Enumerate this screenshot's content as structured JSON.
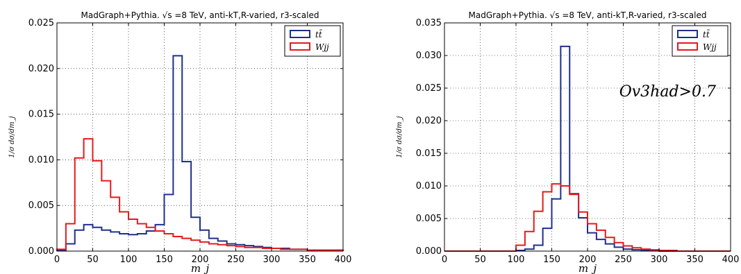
{
  "chart_data": [
    {
      "type": "histogram",
      "title": "MadGraph+Pythia. √s =8 TeV, anti-kT,R-varied, r3-scaled",
      "xlabel": "m_j",
      "ylabel": "1/σ dσ/dm_j",
      "xlim": [
        0,
        400
      ],
      "ylim": [
        0,
        0.025
      ],
      "x_ticks": [
        "0",
        "50",
        "100",
        "150",
        "200",
        "250",
        "300",
        "350",
        "400"
      ],
      "y_ticks": [
        "0.000",
        "0.005",
        "0.010",
        "0.015",
        "0.020",
        "0.025"
      ],
      "grid": true,
      "legend": "top-right",
      "bin_edges": [
        0,
        12.5,
        25,
        37.5,
        50,
        62.5,
        75,
        87.5,
        100,
        112.5,
        125,
        137.5,
        150,
        162.5,
        175,
        187.5,
        200,
        212.5,
        225,
        237.5,
        250,
        262.5,
        275,
        287.5,
        300,
        312.5,
        325,
        337.5,
        350,
        362.5,
        375,
        387.5,
        400
      ],
      "series": [
        {
          "name": "tt̄",
          "color": "#1f2f8c",
          "values": [
            0.0001,
            0.0008,
            0.0023,
            0.0029,
            0.0026,
            0.0023,
            0.0021,
            0.0019,
            0.0018,
            0.0019,
            0.0022,
            0.0029,
            0.0062,
            0.0214,
            0.0098,
            0.0037,
            0.0023,
            0.0014,
            0.0011,
            0.0008,
            0.0007,
            0.0006,
            0.0005,
            0.0004,
            0.0003,
            0.0003,
            0.0002,
            0.0002,
            0.0001,
            0.0001,
            0.0001,
            0.0001
          ]
        },
        {
          "name": "Wjj",
          "color": "#e41a1c",
          "values": [
            0.0002,
            0.003,
            0.0102,
            0.0123,
            0.0099,
            0.0077,
            0.0059,
            0.0043,
            0.0035,
            0.003,
            0.0026,
            0.0022,
            0.0019,
            0.0016,
            0.0014,
            0.0012,
            0.001,
            0.0008,
            0.0007,
            0.0006,
            0.0005,
            0.0004,
            0.0004,
            0.0003,
            0.0003,
            0.0002,
            0.0002,
            0.0002,
            0.0001,
            0.0001,
            0.0001,
            0.0001
          ]
        }
      ]
    },
    {
      "type": "histogram",
      "title": "MadGraph+Pythia. √s =8 TeV, anti-kT,R-varied, r3-scaled",
      "xlabel": "m_j",
      "ylabel": "1/σ dσ/dm_j",
      "xlim": [
        0,
        400
      ],
      "ylim": [
        0,
        0.035
      ],
      "x_ticks": [
        "0",
        "50",
        "100",
        "150",
        "200",
        "250",
        "300",
        "350",
        "400"
      ],
      "y_ticks": [
        "0.000",
        "0.005",
        "0.010",
        "0.015",
        "0.020",
        "0.025",
        "0.030",
        "0.035"
      ],
      "grid": true,
      "legend": "top-right",
      "annotation": "Ov3had>0.7",
      "bin_edges": [
        0,
        12.5,
        25,
        37.5,
        50,
        62.5,
        75,
        87.5,
        100,
        112.5,
        125,
        137.5,
        150,
        162.5,
        175,
        187.5,
        200,
        212.5,
        225,
        237.5,
        250,
        262.5,
        275,
        287.5,
        300,
        312.5,
        325,
        337.5,
        350,
        362.5,
        375,
        387.5,
        400
      ],
      "series": [
        {
          "name": "tt̄",
          "color": "#1f2f8c",
          "values": [
            0,
            0,
            0,
            0,
            0,
            0,
            0,
            0,
            0.0001,
            0.0003,
            0.0009,
            0.0035,
            0.008,
            0.0314,
            0.0088,
            0.0051,
            0.0028,
            0.0018,
            0.0011,
            0.0006,
            0.0003,
            0.0002,
            0.0001,
            0.0001,
            0,
            0,
            0,
            0,
            0,
            0,
            0,
            0
          ]
        },
        {
          "name": "Wjj",
          "color": "#e41a1c",
          "values": [
            0,
            0,
            0,
            0,
            0,
            0,
            0,
            0,
            0.0009,
            0.003,
            0.0061,
            0.0091,
            0.0103,
            0.01,
            0.0087,
            0.006,
            0.0042,
            0.0032,
            0.0021,
            0.0013,
            0.0008,
            0.0005,
            0.0003,
            0.0002,
            0.0001,
            0.0001,
            0,
            0,
            0,
            0,
            0,
            0
          ]
        }
      ]
    }
  ]
}
